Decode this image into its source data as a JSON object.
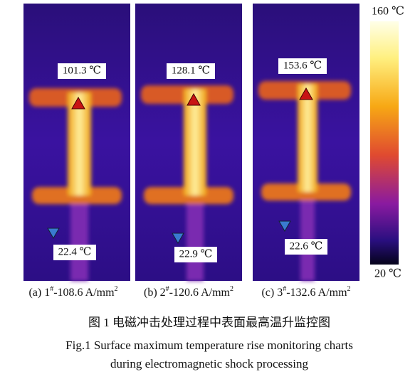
{
  "panels": [
    {
      "max_label": "101.3 ℃",
      "min_label": "22.4 ℃",
      "caption": {
        "prefix": "(a) 1",
        "sup1": "#",
        "current": "-108.6 A/mm",
        "sup2": "2"
      }
    },
    {
      "max_label": "128.1 ℃",
      "min_label": "22.9 ℃",
      "caption": {
        "prefix": "(b) 2",
        "sup1": "#",
        "current": "-120.6 A/mm",
        "sup2": "2"
      }
    },
    {
      "max_label": "153.6 ℃",
      "min_label": "22.6 ℃",
      "caption": {
        "prefix": "(c) 3",
        "sup1": "#",
        "current": "-132.6 A/mm",
        "sup2": "2"
      }
    }
  ],
  "colorbar": {
    "max_label": "160 ℃",
    "min_label": "20 ℃"
  },
  "figure_caption": {
    "zh": "图 1  电磁冲击处理过程中表面最高温升监控图",
    "en_line1": "Fig.1  Surface maximum temperature rise monitoring charts",
    "en_line2": "during electromagnetic shock processing"
  }
}
